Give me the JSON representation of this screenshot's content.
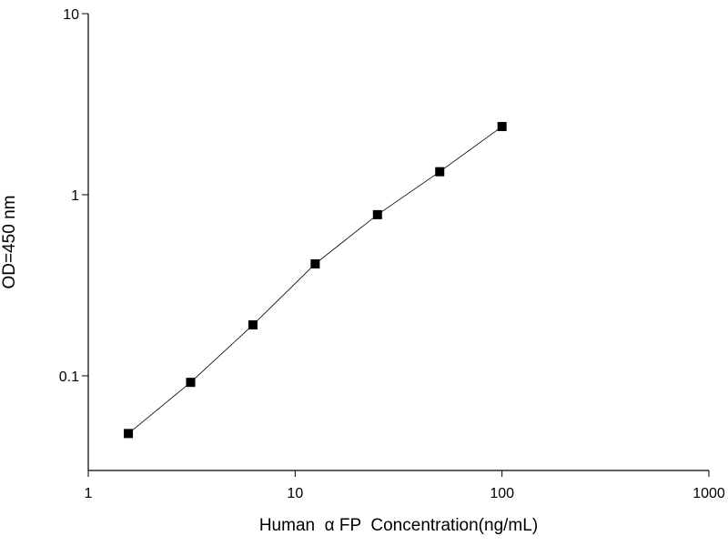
{
  "chart_data": {
    "type": "line",
    "x_label": "Human  α FP  Concentration(ng/mL)",
    "y_label": "OD=450 nm",
    "x": [
      1.5625,
      3.125,
      6.25,
      12.5,
      25,
      50,
      100
    ],
    "series": [
      {
        "color": "#000000",
        "values": [
          0.048,
          0.092,
          0.191,
          0.415,
          0.776,
          1.34,
          2.38
        ]
      }
    ],
    "xlim": [
      1,
      1000
    ],
    "ylim": [
      0.03,
      10
    ],
    "xticks": [
      1,
      10,
      100,
      1000
    ],
    "yticks": [
      0.1,
      1,
      10
    ],
    "xscale": "log",
    "yscale": "log",
    "markers": "square"
  }
}
